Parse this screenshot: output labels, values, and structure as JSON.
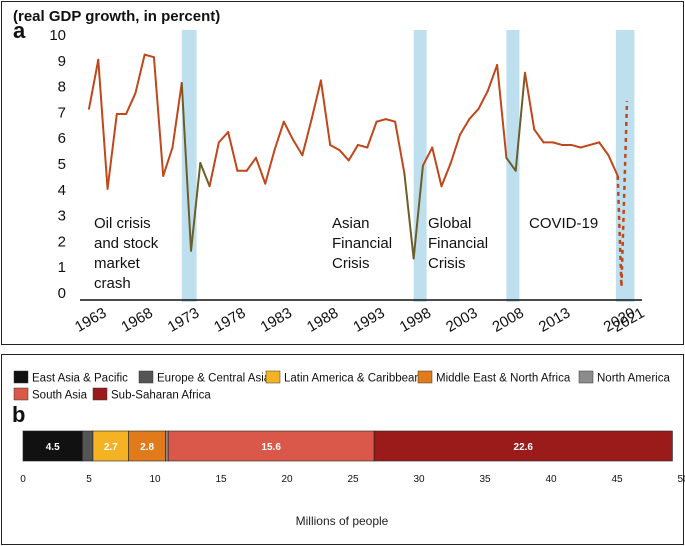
{
  "chart_data": [
    {
      "type": "line",
      "panel_label": "a",
      "title": "(real GDP growth, in percent)",
      "ylim": [
        0,
        10
      ],
      "yticks": [
        "0",
        "1",
        "2",
        "3",
        "4",
        "5",
        "6",
        "7",
        "8",
        "9",
        "10"
      ],
      "xticks": [
        "1963",
        "1968",
        "1973",
        "1978",
        "1983",
        "1988",
        "1993",
        "1998",
        "2003",
        "2008",
        "2013",
        "2020",
        "2021"
      ],
      "series": [
        {
          "x": [
            1963,
            1964,
            1965,
            1966,
            1967,
            1968,
            1969,
            1970,
            1971,
            1972,
            1973,
            1974,
            1975,
            1976,
            1977,
            1978,
            1979,
            1980,
            1981,
            1982,
            1983,
            1984,
            1985,
            1986,
            1987,
            1988,
            1989,
            1990,
            1991,
            1992,
            1993,
            1994,
            1995,
            1996,
            1997,
            1998,
            1999,
            2000,
            2001,
            2002,
            2003,
            2004,
            2005,
            2006,
            2007,
            2008,
            2009,
            2010,
            2011,
            2012,
            2013,
            2014,
            2015,
            2016,
            2017,
            2018,
            2019,
            2020
          ],
          "values": [
            7.1,
            9.0,
            4.0,
            6.9,
            6.9,
            7.7,
            9.2,
            9.1,
            4.5,
            5.6,
            8.1,
            1.6,
            5.0,
            4.1,
            5.8,
            6.2,
            4.7,
            4.7,
            5.2,
            4.2,
            5.5,
            6.6,
            5.9,
            5.3,
            6.7,
            8.2,
            5.7,
            5.5,
            5.1,
            5.7,
            5.6,
            6.6,
            6.7,
            6.6,
            4.6,
            1.3,
            4.9,
            5.6,
            4.1,
            5.0,
            6.1,
            6.7,
            7.1,
            7.8,
            8.8,
            5.2,
            4.7,
            8.5,
            6.3,
            5.8,
            5.8,
            5.7,
            5.7,
            5.6,
            5.7,
            5.8,
            5.3,
            4.5
          ]
        },
        {
          "style": "dashed",
          "x": [
            2020,
            2020.4,
            2021
          ],
          "values": [
            4.5,
            0.2,
            7.4
          ]
        }
      ],
      "shaded_periods": [
        [
          1973,
          1974.6
        ],
        [
          1998,
          1999.4
        ],
        [
          2008,
          2009.4
        ],
        [
          2019.8,
          2021.8
        ]
      ],
      "annotations": [
        {
          "id": "oil",
          "lines": [
            "Oil crisis",
            "and stock",
            "market",
            "crash"
          ]
        },
        {
          "id": "asian",
          "lines": [
            "Asian",
            "Financial",
            "Crisis"
          ]
        },
        {
          "id": "global",
          "lines": [
            "Global",
            "Financial",
            "Crisis"
          ]
        },
        {
          "id": "covid",
          "lines": [
            "COVID-19"
          ]
        }
      ],
      "colors": {
        "line": "#c0471b",
        "segment_in_crisis": "#6b5e2a",
        "shade": "#b3dbeb"
      }
    },
    {
      "type": "stacked-bar",
      "panel_label": "b",
      "xlabel": "Millions of people",
      "xlim": [
        0,
        50
      ],
      "xticks": [
        0,
        5,
        10,
        15,
        20,
        25,
        30,
        35,
        40,
        45,
        50
      ],
      "legend": [
        {
          "name": "East Asia & Pacific",
          "color": "#111111"
        },
        {
          "name": "Europe & Central Asia",
          "color": "#555555"
        },
        {
          "name": "Latin America & Caribbean",
          "color": "#f5b323"
        },
        {
          "name": "Middle East & North Africa",
          "color": "#e07a1a"
        },
        {
          "name": "North America",
          "color": "#8c8c8c"
        },
        {
          "name": "South Asia",
          "color": "#d9584a"
        },
        {
          "name": "Sub-Saharan Africa",
          "color": "#9b1b1b"
        }
      ],
      "segments": [
        {
          "name": "East Asia & Pacific",
          "value": 4.5,
          "label": "4.5",
          "color": "#111111"
        },
        {
          "name": "Europe & Central Asia",
          "value": 0.8,
          "label": "",
          "color": "#555555"
        },
        {
          "name": "Latin America & Caribbean",
          "value": 2.7,
          "label": "2.7",
          "color": "#f5b323"
        },
        {
          "name": "Middle East & North Africa",
          "value": 2.8,
          "label": "2.8",
          "color": "#e07a1a"
        },
        {
          "name": "North America",
          "value": 0.2,
          "label": "",
          "color": "#8c8c8c"
        },
        {
          "name": "South Asia",
          "value": 15.6,
          "label": "15.6",
          "color": "#d9584a"
        },
        {
          "name": "Sub-Saharan Africa",
          "value": 22.6,
          "label": "22.6",
          "color": "#9b1b1b"
        }
      ]
    }
  ]
}
